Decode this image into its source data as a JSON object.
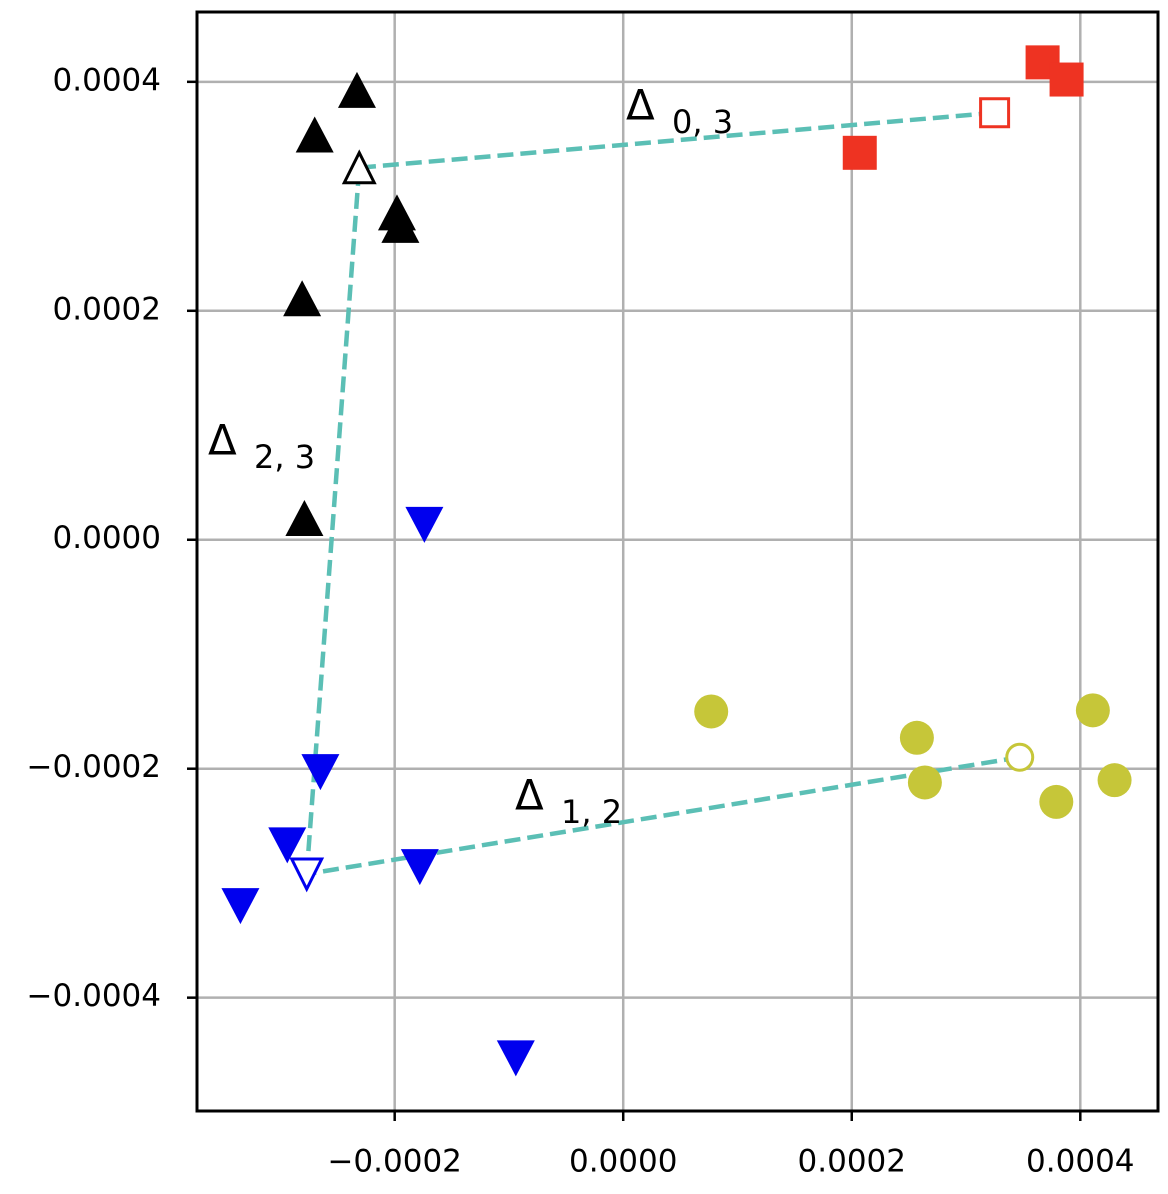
{
  "chart_data": {
    "type": "scatter",
    "xlim": [
      -0.000373,
      0.000468
    ],
    "ylim": [
      -0.000499,
      0.000461
    ],
    "xticks": [
      {
        "value": -0.0002,
        "label": "−0.0002"
      },
      {
        "value": 0,
        "label": "0.0000"
      },
      {
        "value": 0.0002,
        "label": "0.0002"
      },
      {
        "value": 0.0004,
        "label": "0.0004"
      }
    ],
    "yticks": [
      {
        "value": -0.0004,
        "label": "−0.0004"
      },
      {
        "value": -0.0002,
        "label": "−0.0002"
      },
      {
        "value": 0,
        "label": "0.0000"
      },
      {
        "value": 0.0002,
        "label": "0.0002"
      },
      {
        "value": 0.0004,
        "label": "0.0004"
      }
    ],
    "grid": true,
    "series": [
      {
        "marker": "square",
        "color": "#ee3322",
        "x": [
          0.000367,
          0.000388,
          0.000207
        ],
        "y": [
          0.000417,
          0.000402,
          0.000338
        ],
        "centroid": [
          0.000325,
          0.000373
        ]
      },
      {
        "marker": "circle",
        "color": "#c6c639",
        "x": [
          7.7e-05,
          0.000257,
          0.000264,
          0.000411,
          0.000379,
          0.00043
        ],
        "y": [
          -0.00015,
          -0.000173,
          -0.000212,
          -0.000149,
          -0.000229,
          -0.00021
        ],
        "centroid": [
          0.000347,
          -0.00019
        ]
      },
      {
        "marker": "triangle-down",
        "color": "#0000ee",
        "x": [
          -0.000174,
          -0.000265,
          -0.000294,
          -0.000178,
          -0.000335,
          -9.4e-05
        ],
        "y": [
          1.3e-05,
          -0.000203,
          -0.000267,
          -0.000286,
          -0.00032,
          -0.000453
        ],
        "centroid": [
          -0.000277,
          -0.000292
        ]
      },
      {
        "marker": "triangle-up",
        "color": "#000000",
        "x": [
          -0.000233,
          -0.00027,
          -0.000198,
          -0.000195,
          -0.000281,
          -0.000279
        ],
        "y": [
          0.000393,
          0.000354,
          0.000286,
          0.000275,
          0.000211,
          1.9e-05
        ],
        "centroid": [
          -0.000231,
          0.000325
        ]
      }
    ],
    "link_color": "#5bbfb5",
    "annotations": [
      {
        "text": "Δ",
        "subscript": "0, 3"
      },
      {
        "text": "Δ",
        "subscript": "2, 3"
      },
      {
        "text": "Δ",
        "subscript": "1, 2"
      }
    ]
  }
}
